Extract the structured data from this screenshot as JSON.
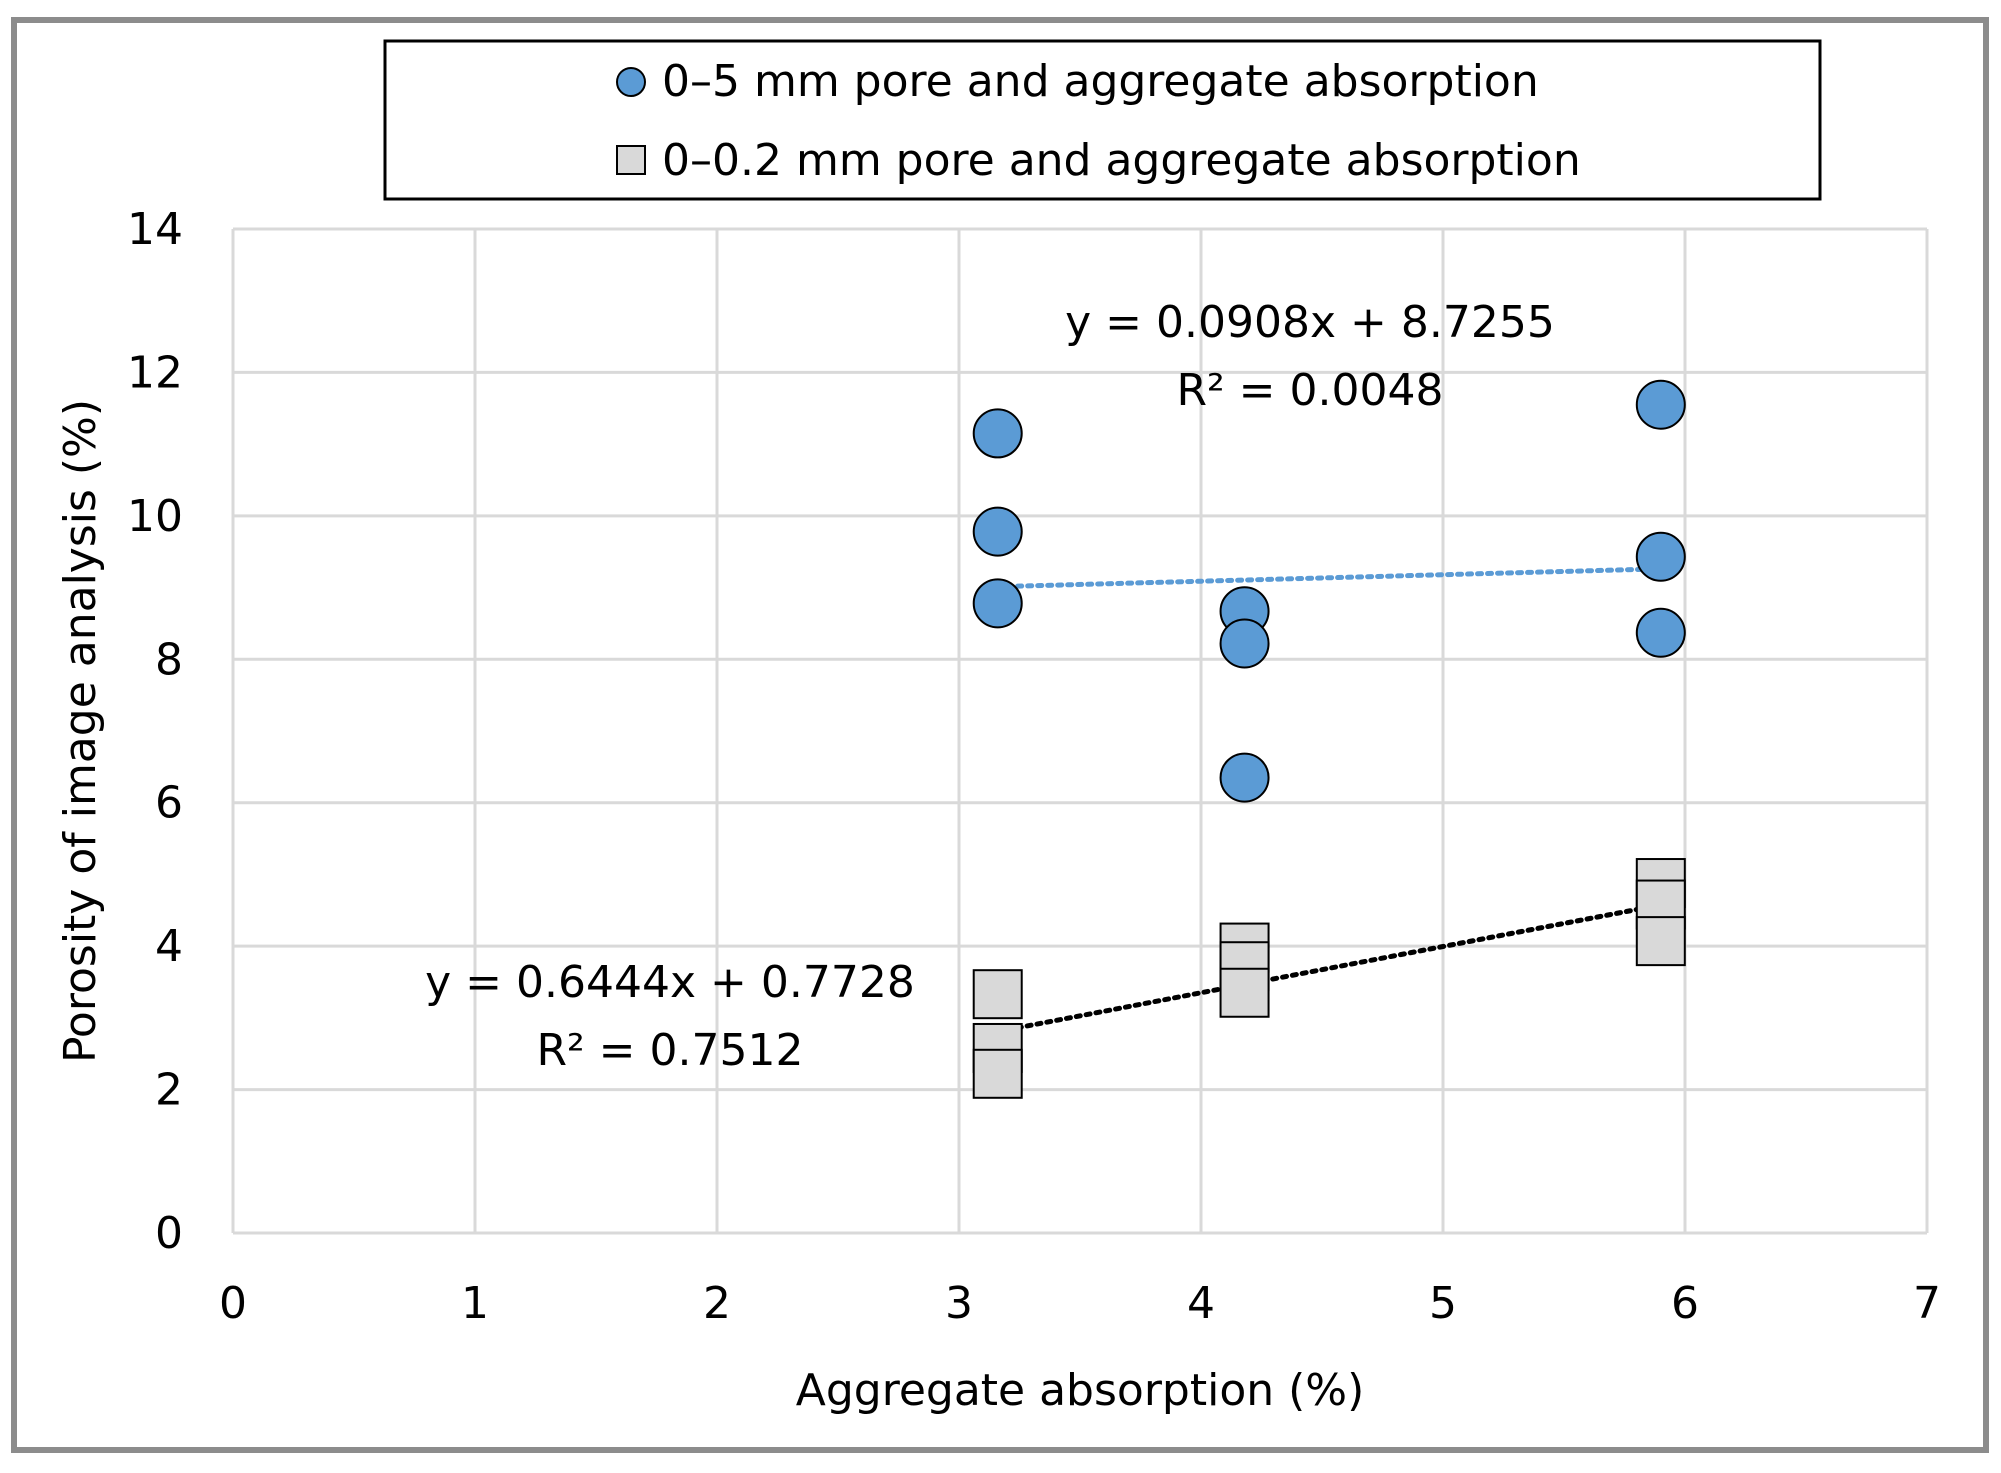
{
  "chart_data": {
    "type": "scatter",
    "title": "",
    "xlabel": "Aggregate absorption (%)",
    "ylabel": "Porosity of image analysis (%)",
    "xlim": [
      0,
      7
    ],
    "ylim": [
      0,
      14
    ],
    "xticks": [
      0,
      1,
      2,
      3,
      4,
      5,
      6,
      7
    ],
    "yticks": [
      0,
      2,
      4,
      6,
      8,
      10,
      12,
      14
    ],
    "grid": true,
    "legend_position": "top-center",
    "series": [
      {
        "name": "0–5 mm pore and aggregate absorption",
        "marker": "circle",
        "color": "#5b9bd5",
        "trendline_color": "#5b9bd5",
        "points": [
          {
            "x": 3.16,
            "y": 11.15
          },
          {
            "x": 3.16,
            "y": 9.78
          },
          {
            "x": 3.16,
            "y": 8.78
          },
          {
            "x": 4.18,
            "y": 8.67
          },
          {
            "x": 4.18,
            "y": 8.22
          },
          {
            "x": 4.18,
            "y": 6.35
          },
          {
            "x": 5.9,
            "y": 11.55
          },
          {
            "x": 5.9,
            "y": 9.43
          },
          {
            "x": 5.9,
            "y": 8.37
          }
        ],
        "trendline": {
          "slope": 0.0908,
          "intercept": 8.7255,
          "x_range": [
            3.16,
            5.9
          ]
        },
        "equation": "y = 0.0908x + 8.7255",
        "r2": "R² = 0.0048"
      },
      {
        "name": "0–0.2 mm pore and aggregate absorption",
        "marker": "square",
        "color": "#d9d9d9",
        "trendline_color": "#000000",
        "points": [
          {
            "x": 3.16,
            "y": 3.33
          },
          {
            "x": 3.16,
            "y": 2.58
          },
          {
            "x": 3.16,
            "y": 2.22
          },
          {
            "x": 4.18,
            "y": 3.98
          },
          {
            "x": 4.18,
            "y": 3.72
          },
          {
            "x": 4.18,
            "y": 3.35
          },
          {
            "x": 5.9,
            "y": 4.88
          },
          {
            "x": 5.9,
            "y": 4.58
          },
          {
            "x": 5.9,
            "y": 4.07
          }
        ],
        "trendline": {
          "slope": 0.6444,
          "intercept": 0.7728,
          "x_range": [
            3.16,
            5.9
          ]
        },
        "equation": "y = 0.6444x + 0.7728",
        "r2": "R² = 0.7512"
      }
    ]
  }
}
